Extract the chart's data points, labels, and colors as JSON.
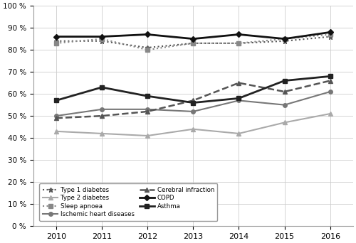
{
  "years": [
    2010,
    2011,
    2012,
    2013,
    2014,
    2015,
    2016
  ],
  "series": {
    "Type 1 diabetes": {
      "values": [
        84,
        84,
        81,
        83,
        83,
        84,
        86
      ],
      "color": "#555555",
      "linestyle": "dotted",
      "marker": "*",
      "markersize": 5,
      "linewidth": 1.5
    },
    "Type 2 diabetes": {
      "values": [
        43,
        42,
        41,
        44,
        42,
        47,
        51
      ],
      "color": "#aaaaaa",
      "linestyle": "solid",
      "marker": "^",
      "markersize": 4,
      "linewidth": 1.5
    },
    "Sleep apnoea": {
      "values": [
        83,
        85,
        80,
        83,
        83,
        85,
        87
      ],
      "color": "#888888",
      "linestyle": "dotted",
      "marker": "s",
      "markersize": 4,
      "linewidth": 1.5
    },
    "Ischemic heart diseases": {
      "values": [
        50,
        53,
        53,
        52,
        57,
        55,
        61
      ],
      "color": "#777777",
      "linestyle": "solid",
      "marker": "o",
      "markersize": 4,
      "linewidth": 1.5
    },
    "Cerebral infraction": {
      "values": [
        49,
        50,
        52,
        57,
        65,
        61,
        66
      ],
      "color": "#555555",
      "linestyle": "dashed",
      "marker": "^",
      "markersize": 4,
      "linewidth": 1.8
    },
    "COPD": {
      "values": [
        86,
        86,
        87,
        85,
        87,
        85,
        88
      ],
      "color": "#111111",
      "linestyle": "solid",
      "marker": "D",
      "markersize": 4,
      "linewidth": 2.0
    },
    "Asthma": {
      "values": [
        57,
        63,
        59,
        56,
        58,
        66,
        68
      ],
      "color": "#222222",
      "linestyle": "solid",
      "marker": "s",
      "markersize": 4,
      "linewidth": 2.0
    }
  },
  "plot_order": [
    "Type 2 diabetes",
    "Ischemic heart diseases",
    "Cerebral infraction",
    "Type 1 diabetes",
    "Sleep apnoea",
    "Asthma",
    "COPD"
  ],
  "legend_order": [
    "Type 1 diabetes",
    "Type 2 diabetes",
    "Sleep apnoea",
    "Ischemic heart diseases",
    "Cerebral infraction",
    "COPD",
    "Asthma"
  ],
  "ylim": [
    0,
    100
  ],
  "yticks": [
    0,
    10,
    20,
    30,
    40,
    50,
    60,
    70,
    80,
    90,
    100
  ],
  "ytick_labels": [
    "0 %",
    "10 %",
    "20 %",
    "30 %",
    "40 %",
    "50 %",
    "60 %",
    "70 %",
    "80 %",
    "90 %",
    "100 %"
  ],
  "background_color": "#ffffff",
  "grid_color": "#cccccc",
  "figsize": [
    5.0,
    3.42
  ],
  "dpi": 100
}
